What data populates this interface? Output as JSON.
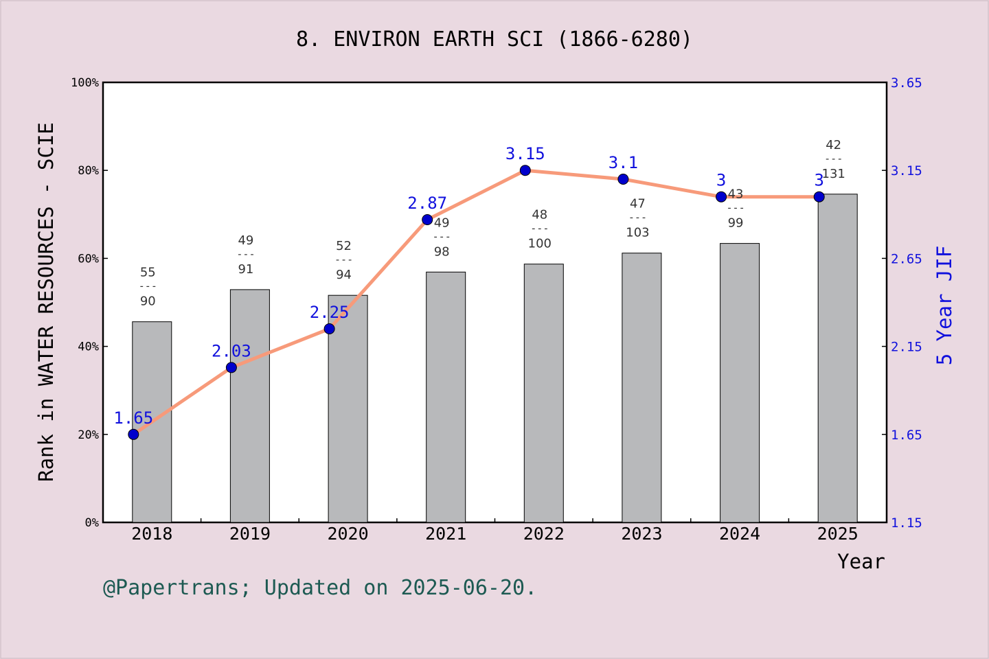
{
  "chart_data": {
    "type": "bar",
    "title": "8. ENVIRON EARTH SCI (1866-6280)",
    "ylabel": "Rank in WATER RESOURCES - SCIE",
    "y2label": "5 Year JIF",
    "xlabel": "Year",
    "categories": [
      "2018",
      "2019",
      "2020",
      "2021",
      "2022",
      "2023",
      "2024",
      "2025"
    ],
    "ylim": [
      0,
      100
    ],
    "y2lim": [
      1.15,
      3.65
    ],
    "y_ticks": [
      "0%",
      "20%",
      "40%",
      "60%",
      "80%",
      "100%"
    ],
    "y2_ticks": [
      "1.15",
      "1.65",
      "2.15",
      "2.65",
      "3.15",
      "3.65"
    ],
    "rank_fraction_divider": "---",
    "series": [
      {
        "type": "bar",
        "rank": [
          55,
          49,
          52,
          49,
          48,
          47,
          43,
          42
        ],
        "total": [
          90,
          91,
          94,
          98,
          100,
          103,
          99,
          131
        ],
        "values": [
          45.6,
          52.9,
          51.6,
          56.9,
          58.7,
          61.2,
          63.4,
          74.6
        ],
        "color": "#b8b9bb"
      },
      {
        "type": "line",
        "values": [
          1.65,
          2.03,
          2.25,
          2.87,
          3.15,
          3.1,
          3.0,
          3.0
        ],
        "labels": [
          "1.65",
          "2.03",
          "2.25",
          "2.87",
          "3.15",
          "3.1",
          "3",
          "3"
        ],
        "color": "#f79a7a",
        "marker_color": "#0000cc"
      }
    ],
    "grid": false
  },
  "footer": "@Papertrans; Updated on 2025-06-20."
}
